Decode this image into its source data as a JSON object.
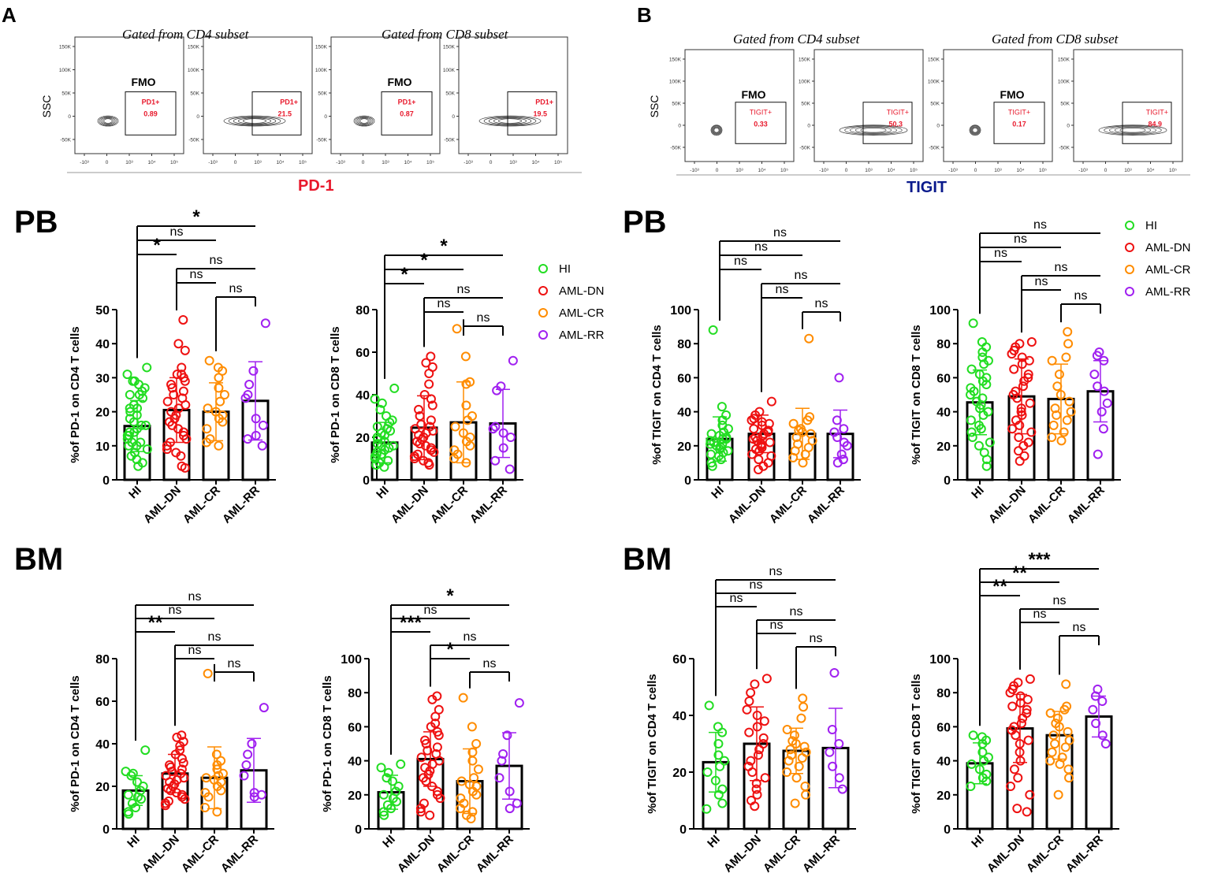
{
  "panel_letters": {
    "a": "A",
    "b": "B"
  },
  "section_labels": {
    "pb_left": "PB",
    "bm_left": "BM",
    "pb_right": "PB",
    "bm_right": "BM"
  },
  "flow": {
    "titles": {
      "a_cd4": "Gated from CD4 subset",
      "a_cd8": "Gated from CD8 subset",
      "b_cd4": "Gated from CD4 subset",
      "b_cd8": "Gated from CD8 subset"
    },
    "a_xlabel": "PD-1",
    "b_xlabel": "TIGIT",
    "ylabel": "SSC",
    "fmo_label": "FMO",
    "y_ticks": [
      "150K",
      "100K",
      "50K",
      "0",
      "-50K"
    ],
    "x_ticks": [
      "-10³",
      "0",
      "10³",
      "10⁴",
      "10⁵"
    ],
    "plots": [
      {
        "group": "a",
        "fmo": true,
        "gate_label": "PD1+",
        "gate_value": "0.89"
      },
      {
        "group": "a",
        "fmo": false,
        "gate_label": "PD1+",
        "gate_value": "21.5"
      },
      {
        "group": "a",
        "fmo": true,
        "gate_label": "PD1+",
        "gate_value": "0.87"
      },
      {
        "group": "a",
        "fmo": false,
        "gate_label": "PD1+",
        "gate_value": "19.5"
      },
      {
        "group": "b",
        "fmo": true,
        "gate_label": "TIGIT+",
        "gate_value": "0.33"
      },
      {
        "group": "b",
        "fmo": false,
        "gate_label": "TIGIT+",
        "gate_value": "50.3"
      },
      {
        "group": "b",
        "fmo": true,
        "gate_label": "TIGIT+",
        "gate_value": "0.17"
      },
      {
        "group": "b",
        "fmo": false,
        "gate_label": "TIGIT+",
        "gate_value": "84.9"
      }
    ]
  },
  "legend_left": [
    {
      "label": "HI",
      "color": "#22dd22"
    },
    {
      "label": "AML-DN",
      "color": "#ee1111"
    },
    {
      "label": "AML-CR",
      "color": "#ff8c00"
    },
    {
      "label": "AML-RR",
      "color": "#a020f0"
    }
  ],
  "legend_right": [
    {
      "label": "HI",
      "color": "#22dd22"
    },
    {
      "label": "AML-DN",
      "color": "#ee1111"
    },
    {
      "label": "AML-CR",
      "color": "#ff8c00"
    },
    {
      "label": "AML-RR",
      "color": "#a020f0"
    }
  ],
  "chart_data": [
    {
      "id": "pb_pd1_cd4",
      "type": "bar",
      "ylabel": "%of PD-1 on CD4 T  cells",
      "categories": [
        "HI",
        "AML-DN",
        "AML-CR",
        "AML-RR"
      ],
      "means": [
        15.8,
        20.5,
        20.0,
        23.2
      ],
      "sd": [
        7.5,
        9.5,
        8.5,
        11.5
      ],
      "ylim": [
        0,
        50
      ],
      "yticks": [
        0,
        10,
        20,
        30,
        40,
        50
      ],
      "points": [
        [
          33,
          31,
          29,
          29,
          28,
          27,
          26,
          25,
          25,
          24,
          22,
          21,
          21,
          20,
          19,
          18,
          17,
          16,
          16,
          15,
          14,
          14,
          13,
          13,
          12,
          11,
          11,
          10,
          10,
          9,
          8,
          7,
          6,
          5,
          4
        ],
        [
          47,
          40,
          38,
          33,
          31,
          31,
          30,
          29,
          28,
          27,
          26,
          25,
          24,
          23,
          22,
          21,
          20,
          19,
          18,
          17,
          16,
          15,
          14,
          13,
          12,
          11,
          10,
          9,
          8,
          7,
          4,
          3.5
        ],
        [
          35,
          33,
          32,
          30,
          27,
          25,
          23,
          21,
          20,
          19,
          18,
          17,
          15,
          12,
          11,
          10
        ],
        [
          46,
          32,
          28,
          25,
          24,
          18,
          16,
          13,
          12,
          10
        ]
      ],
      "comparisons": [
        {
          "a": 0,
          "b": 3,
          "label": "*"
        },
        {
          "a": 0,
          "b": 2,
          "label": "ns"
        },
        {
          "a": 0,
          "b": 1,
          "label": "*"
        },
        {
          "a": 1,
          "b": 3,
          "label": "ns"
        },
        {
          "a": 1,
          "b": 2,
          "label": "ns"
        },
        {
          "a": 2,
          "b": 3,
          "label": "ns"
        }
      ]
    },
    {
      "id": "pb_pd1_cd8",
      "type": "bar",
      "ylabel": "%of PD-1 on CD8 T  cells",
      "categories": [
        "HI",
        "AML-DN",
        "AML-CR",
        "AML-RR"
      ],
      "means": [
        17.5,
        24.5,
        27.0,
        26.5
      ],
      "sd": [
        9.5,
        15.0,
        19.0,
        16.0
      ],
      "ylim": [
        0,
        80
      ],
      "yticks": [
        0,
        20,
        40,
        60,
        80
      ],
      "points": [
        [
          43,
          38,
          36,
          33,
          30,
          28,
          27,
          25,
          24,
          23,
          22,
          21,
          20,
          19,
          18,
          17,
          16,
          16,
          15,
          14,
          13,
          12,
          12,
          11,
          10,
          9,
          8,
          7,
          6
        ],
        [
          58,
          55,
          53,
          50,
          45,
          40,
          38,
          35,
          33,
          30,
          28,
          26,
          25,
          24,
          23,
          22,
          21,
          20,
          19,
          18,
          17,
          16,
          15,
          14,
          13,
          12,
          11,
          10,
          9,
          8,
          7
        ],
        [
          71,
          58,
          46,
          45,
          35,
          30,
          28,
          25,
          22,
          20,
          18,
          16,
          14,
          12,
          10,
          8
        ],
        [
          56,
          44,
          42,
          25,
          24,
          22,
          20,
          15,
          9,
          5
        ]
      ],
      "comparisons": [
        {
          "a": 0,
          "b": 3,
          "label": "*"
        },
        {
          "a": 0,
          "b": 2,
          "label": "*"
        },
        {
          "a": 0,
          "b": 1,
          "label": "*"
        },
        {
          "a": 1,
          "b": 3,
          "label": "ns"
        },
        {
          "a": 1,
          "b": 2,
          "label": "ns"
        },
        {
          "a": 2,
          "b": 3,
          "label": "ns"
        }
      ]
    },
    {
      "id": "pb_tigit_cd4",
      "type": "bar",
      "ylabel": "%of TIGIT on CD4 T  cells",
      "categories": [
        "HI",
        "AML-DN",
        "AML-CR",
        "AML-RR"
      ],
      "means": [
        24.0,
        27.0,
        27.0,
        27.0
      ],
      "sd": [
        13.0,
        11.0,
        15.0,
        14.0
      ],
      "ylim": [
        0,
        100
      ],
      "yticks": [
        0,
        20,
        40,
        60,
        80,
        100
      ],
      "points": [
        [
          88,
          43,
          38,
          35,
          32,
          30,
          28,
          27,
          26,
          25,
          24,
          24,
          23,
          22,
          21,
          21,
          20,
          19,
          18,
          17,
          16,
          15,
          14,
          12,
          10,
          8
        ],
        [
          46,
          40,
          38,
          36,
          35,
          34,
          33,
          32,
          30,
          29,
          28,
          27,
          26,
          25,
          24,
          23,
          22,
          21,
          20,
          19,
          18,
          17,
          15,
          14,
          12,
          10,
          8,
          6
        ],
        [
          83,
          37,
          35,
          33,
          30,
          29,
          28,
          27,
          25,
          23,
          21,
          19,
          17,
          15,
          13,
          10
        ],
        [
          60,
          35,
          30,
          28,
          25,
          22,
          20,
          15,
          12,
          10
        ]
      ],
      "comparisons": [
        {
          "a": 0,
          "b": 3,
          "label": "ns"
        },
        {
          "a": 0,
          "b": 2,
          "label": "ns"
        },
        {
          "a": 0,
          "b": 1,
          "label": "ns"
        },
        {
          "a": 1,
          "b": 3,
          "label": "ns"
        },
        {
          "a": 1,
          "b": 2,
          "label": "ns"
        },
        {
          "a": 2,
          "b": 3,
          "label": "ns"
        }
      ]
    },
    {
      "id": "pb_tigit_cd8",
      "type": "bar",
      "ylabel": "%of TIGIT on CD8 T  cells",
      "categories": [
        "HI",
        "AML-DN",
        "AML-CR",
        "AML-RR"
      ],
      "means": [
        45.5,
        49.0,
        47.5,
        52.0
      ],
      "sd": [
        19.0,
        22.0,
        20.5,
        18.0
      ],
      "ylim": [
        0,
        100
      ],
      "yticks": [
        0,
        20,
        40,
        60,
        80,
        100
      ],
      "points": [
        [
          92,
          81,
          78,
          75,
          72,
          70,
          68,
          65,
          62,
          60,
          58,
          56,
          54,
          52,
          50,
          48,
          46,
          44,
          42,
          40,
          38,
          35,
          32,
          30,
          28,
          25,
          22,
          20,
          16,
          12,
          8
        ],
        [
          81,
          80,
          78,
          76,
          74,
          72,
          70,
          68,
          65,
          62,
          60,
          58,
          55,
          52,
          50,
          48,
          45,
          42,
          40,
          38,
          35,
          32,
          30,
          28,
          25,
          22,
          20,
          17,
          14,
          11
        ],
        [
          87,
          80,
          72,
          70,
          62,
          55,
          50,
          46,
          42,
          40,
          38,
          35,
          32,
          28,
          25,
          23
        ],
        [
          75,
          73,
          70,
          62,
          55,
          52,
          45,
          40,
          30,
          15
        ]
      ],
      "comparisons": [
        {
          "a": 0,
          "b": 3,
          "label": "ns"
        },
        {
          "a": 0,
          "b": 2,
          "label": "ns"
        },
        {
          "a": 0,
          "b": 1,
          "label": "ns"
        },
        {
          "a": 1,
          "b": 3,
          "label": "ns"
        },
        {
          "a": 1,
          "b": 2,
          "label": "ns"
        },
        {
          "a": 2,
          "b": 3,
          "label": "ns"
        }
      ]
    },
    {
      "id": "bm_pd1_cd4",
      "type": "bar",
      "ylabel": "%of PD-1 on CD4 T  cells",
      "categories": [
        "HI",
        "AML-DN",
        "AML-CR",
        "AML-RR"
      ],
      "means": [
        18.0,
        26.0,
        24.0,
        27.5
      ],
      "sd": [
        7.0,
        9.0,
        14.5,
        15.0
      ],
      "ylim": [
        0,
        80
      ],
      "yticks": [
        0,
        20,
        40,
        60,
        80
      ],
      "points": [
        [
          37,
          27,
          26,
          25,
          22,
          20,
          18,
          16,
          15,
          14,
          12,
          10,
          8,
          7
        ],
        [
          44,
          43,
          41,
          39,
          37,
          35,
          33,
          31,
          30,
          29,
          28,
          27,
          26,
          25,
          24,
          23,
          22,
          21,
          20,
          19,
          18,
          17,
          16,
          15,
          14,
          13,
          12,
          11
        ],
        [
          73,
          35,
          32,
          30,
          28,
          26,
          25,
          24,
          23,
          22,
          20,
          18,
          17,
          15,
          10,
          8
        ],
        [
          57,
          40,
          35,
          30,
          25,
          17,
          16,
          15
        ]
      ],
      "comparisons": [
        {
          "a": 0,
          "b": 3,
          "label": "ns"
        },
        {
          "a": 0,
          "b": 2,
          "label": "ns"
        },
        {
          "a": 0,
          "b": 1,
          "label": "**"
        },
        {
          "a": 1,
          "b": 3,
          "label": "ns"
        },
        {
          "a": 1,
          "b": 2,
          "label": "ns"
        },
        {
          "a": 2,
          "b": 3,
          "label": "ns"
        }
      ]
    },
    {
      "id": "bm_pd1_cd8",
      "type": "bar",
      "ylabel": "%of PD-1 on CD8 T  cells",
      "categories": [
        "HI",
        "AML-DN",
        "AML-CR",
        "AML-RR"
      ],
      "means": [
        21.5,
        41.0,
        28.0,
        37.0
      ],
      "sd": [
        10.0,
        16.0,
        19.0,
        19.5
      ],
      "ylim": [
        0,
        100
      ],
      "yticks": [
        0,
        20,
        40,
        60,
        80,
        100
      ],
      "points": [
        [
          38,
          36,
          33,
          30,
          28,
          25,
          22,
          20,
          18,
          16,
          14,
          12,
          10,
          8
        ],
        [
          78,
          76,
          70,
          66,
          62,
          60,
          57,
          55,
          52,
          50,
          48,
          46,
          44,
          42,
          40,
          38,
          36,
          34,
          32,
          30,
          28,
          25,
          22,
          20,
          18,
          15,
          12,
          10,
          8
        ],
        [
          77,
          60,
          50,
          45,
          40,
          35,
          30,
          28,
          26,
          25,
          22,
          20,
          18,
          15,
          12,
          10,
          8,
          6
        ],
        [
          74,
          55,
          44,
          40,
          30,
          22,
          15,
          12
        ]
      ],
      "comparisons": [
        {
          "a": 0,
          "b": 3,
          "label": "*"
        },
        {
          "a": 0,
          "b": 2,
          "label": "ns"
        },
        {
          "a": 0,
          "b": 1,
          "label": "***"
        },
        {
          "a": 1,
          "b": 3,
          "label": "ns"
        },
        {
          "a": 1,
          "b": 2,
          "label": "*"
        },
        {
          "a": 2,
          "b": 3,
          "label": "ns"
        }
      ]
    },
    {
      "id": "bm_tigit_cd4",
      "type": "bar",
      "ylabel": "%of TIGIT on CD4 T  cells",
      "categories": [
        "HI",
        "AML-DN",
        "AML-CR",
        "AML-RR"
      ],
      "means": [
        23.5,
        30.0,
        27.5,
        28.5
      ],
      "sd": [
        10.5,
        13.0,
        8.0,
        14.0
      ],
      "ylim": [
        0,
        60
      ],
      "yticks": [
        0,
        20,
        40,
        60
      ],
      "points": [
        [
          43.5,
          36,
          34,
          30,
          26,
          24,
          22,
          20,
          17,
          14,
          12,
          9,
          7
        ],
        [
          53,
          51,
          48,
          45,
          42,
          40,
          38,
          36,
          34,
          32,
          30,
          28,
          26,
          24,
          22,
          20,
          18,
          16,
          14,
          12,
          10,
          8
        ],
        [
          46,
          43,
          39,
          35,
          33,
          31,
          30,
          29,
          28,
          27,
          26,
          25,
          24,
          22,
          20,
          18,
          15,
          12,
          9
        ],
        [
          55,
          35,
          30,
          27,
          22,
          18,
          14
        ]
      ],
      "comparisons": [
        {
          "a": 0,
          "b": 3,
          "label": "ns"
        },
        {
          "a": 0,
          "b": 2,
          "label": "ns"
        },
        {
          "a": 0,
          "b": 1,
          "label": "ns"
        },
        {
          "a": 1,
          "b": 3,
          "label": "ns"
        },
        {
          "a": 1,
          "b": 2,
          "label": "ns"
        },
        {
          "a": 2,
          "b": 3,
          "label": "ns"
        }
      ]
    },
    {
      "id": "bm_tigit_cd8",
      "type": "bar",
      "ylabel": "%of TIGIT on CD8 T  cells",
      "categories": [
        "HI",
        "AML-DN",
        "AML-CR",
        "AML-RR"
      ],
      "means": [
        38.5,
        59.0,
        55.0,
        66.0
      ],
      "sd": [
        12.0,
        20.0,
        14.0,
        12.0
      ],
      "ylim": [
        0,
        100
      ],
      "yticks": [
        0,
        20,
        40,
        60,
        80,
        100
      ],
      "points": [
        [
          55,
          54,
          52,
          50,
          45,
          42,
          40,
          38,
          35,
          32,
          30,
          28,
          25
        ],
        [
          88,
          86,
          84,
          82,
          80,
          78,
          76,
          74,
          72,
          70,
          68,
          65,
          62,
          60,
          58,
          55,
          52,
          50,
          45,
          40,
          35,
          30,
          25,
          20,
          12,
          10
        ],
        [
          85,
          72,
          70,
          68,
          65,
          62,
          60,
          57,
          55,
          52,
          50,
          48,
          45,
          42,
          40,
          38,
          35,
          30,
          20
        ],
        [
          82,
          78,
          75,
          70,
          62,
          55,
          50
        ]
      ],
      "comparisons": [
        {
          "a": 0,
          "b": 3,
          "label": "***"
        },
        {
          "a": 0,
          "b": 2,
          "label": "**"
        },
        {
          "a": 0,
          "b": 1,
          "label": "**"
        },
        {
          "a": 1,
          "b": 3,
          "label": "ns"
        },
        {
          "a": 1,
          "b": 2,
          "label": "ns"
        },
        {
          "a": 2,
          "b": 3,
          "label": "ns"
        }
      ]
    }
  ]
}
